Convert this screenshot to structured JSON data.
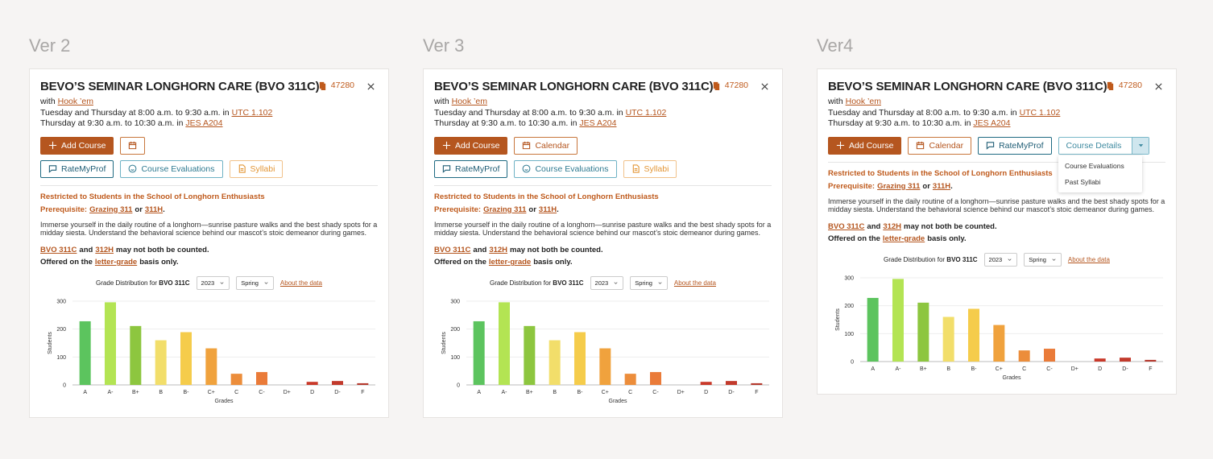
{
  "versions": [
    {
      "label": "Ver 2",
      "title": "BEVO’S SEMINAR LONGHORN CARE (BVO 311C)",
      "unique": "47280",
      "instructor_prefix": "with",
      "instructor": "Hook ’em",
      "schedule": [
        {
          "text": "Tuesday and Thursday at 8:00 a.m. to 9:30 a.m. in",
          "room": "UTC 1.102"
        },
        {
          "text": "Thursday at 9:30 a.m. to 10:30 a.m. in",
          "room": "JES A204"
        }
      ],
      "button_rows": [
        [
          {
            "label": "Add Course",
            "style": "primary",
            "icon": "plus"
          },
          {
            "style": "orange",
            "icon": "calendar"
          }
        ],
        [
          {
            "label": "RateMyProf",
            "style": "teal",
            "icon": "chat"
          },
          {
            "label": "Course Evaluations",
            "style": "light-teal",
            "icon": "smile"
          },
          {
            "label": "Syllabi",
            "style": "light-orange",
            "icon": "doc"
          }
        ]
      ],
      "restriction": "Restricted to Students in the School of Longhorn Enthusiasts",
      "prerequisite": [
        {
          "text": "Prerequisite:"
        },
        {
          "text": "Grazing 311",
          "link": true
        },
        {
          "text": "or"
        },
        {
          "text": "311H",
          "link": true
        },
        {
          "text": "."
        }
      ],
      "description": "Immerse yourself in the daily routine of a longhorn—sunrise pasture walks and the best shady spots for a midday siesta. Understand the behavioral science behind our mascot’s stoic demeanor during games.",
      "notes": [
        [
          {
            "text": "BVO 311C",
            "link": true
          },
          {
            "text": "and"
          },
          {
            "text": "312H",
            "link": true
          },
          {
            "text": "may not both be counted."
          }
        ],
        [
          {
            "text": "Offered on the"
          },
          {
            "text": "letter-grade",
            "link": true
          },
          {
            "text": "basis only."
          }
        ]
      ]
    },
    {
      "label": "Ver 3",
      "title": "BEVO’S SEMINAR LONGHORN CARE (BVO 311C)",
      "unique": "47280",
      "instructor_prefix": "with",
      "instructor": "Hook ’em",
      "schedule": [
        {
          "text": "Tuesday and Thursday at 8:00 a.m. to 9:30 a.m. in",
          "room": "UTC 1.102"
        },
        {
          "text": "Thursday at 9:30 a.m. to 10:30 a.m. in",
          "room": "JES A204"
        }
      ],
      "button_rows": [
        [
          {
            "label": "Add Course",
            "style": "primary",
            "icon": "plus"
          },
          {
            "label": "Calendar",
            "style": "orange",
            "icon": "calendar"
          }
        ],
        [
          {
            "label": "RateMyProf",
            "style": "teal",
            "icon": "chat"
          },
          {
            "label": "Course Evaluations",
            "style": "light-teal",
            "icon": "smile"
          },
          {
            "label": "Syllabi",
            "style": "light-orange",
            "icon": "doc"
          }
        ]
      ],
      "restriction": "Restricted to Students in the School of Longhorn Enthusiasts",
      "prerequisite": [
        {
          "text": "Prerequisite:"
        },
        {
          "text": "Grazing 311",
          "link": true
        },
        {
          "text": "or"
        },
        {
          "text": "311H",
          "link": true
        },
        {
          "text": "."
        }
      ],
      "description": "Immerse yourself in the daily routine of a longhorn—sunrise pasture walks and the best shady spots for a midday siesta. Understand the behavioral science behind our mascot’s stoic demeanor during games.",
      "notes": [
        [
          {
            "text": "BVO 311C",
            "link": true
          },
          {
            "text": "and"
          },
          {
            "text": "312H",
            "link": true
          },
          {
            "text": "may not both be counted."
          }
        ],
        [
          {
            "text": "Offered on the"
          },
          {
            "text": "letter-grade",
            "link": true
          },
          {
            "text": "basis only."
          }
        ]
      ]
    },
    {
      "label": "Ver4",
      "title": "BEVO’S SEMINAR LONGHORN CARE (BVO 311C)",
      "unique": "47280",
      "instructor_prefix": "with",
      "instructor": "Hook ’em",
      "schedule": [
        {
          "text": "Tuesday and Thursday at 8:00 a.m. to 9:30 a.m. in",
          "room": "UTC 1.102"
        },
        {
          "text": "Thursday at 9:30 a.m. to 10:30 a.m. in",
          "room": "JES A204"
        }
      ],
      "button_rows": [
        [
          {
            "label": "Add Course",
            "style": "primary",
            "icon": "plus"
          },
          {
            "label": "Calendar",
            "style": "orange",
            "icon": "calendar"
          },
          {
            "label": "RateMyProf",
            "style": "teal",
            "icon": "chat"
          },
          {
            "label": "Course Details",
            "style": "split",
            "menu": [
              "Course Evaluations",
              "Past Syllabi"
            ]
          }
        ]
      ],
      "restriction": "Restricted to Students in the School of Longhorn Enthusiasts",
      "prerequisite": [
        {
          "text": "Prerequisite:"
        },
        {
          "text": "Grazing 311",
          "link": true
        },
        {
          "text": "or"
        },
        {
          "text": "311H",
          "link": true
        },
        {
          "text": "."
        }
      ],
      "description": "Immerse yourself in the daily routine of a longhorn—sunrise pasture walks and the best shady spots for a midday siesta. Understand the behavioral science behind our mascot’s stoic demeanor during games.",
      "notes": [
        [
          {
            "text": "BVO 311C",
            "link": true
          },
          {
            "text": "and"
          },
          {
            "text": "312H",
            "link": true
          },
          {
            "text": "may not both be counted."
          }
        ],
        [
          {
            "text": "Offered on the"
          },
          {
            "text": "letter-grade",
            "link": true
          },
          {
            "text": "basis only."
          }
        ]
      ]
    }
  ],
  "chart_data": [
    {
      "type": "bar",
      "title": "Grade Distribution for",
      "course": "BVO 311C",
      "year": "2023",
      "semester": "Spring",
      "link": "About the data",
      "ylabel": "Students",
      "xlabel": "Grades",
      "categories": [
        "A",
        "A-",
        "B+",
        "B",
        "B-",
        "C+",
        "C",
        "C-",
        "D+",
        "D",
        "D-",
        "F"
      ],
      "values": [
        228,
        296,
        211,
        160,
        189,
        131,
        40,
        46,
        0,
        11,
        14,
        6
      ],
      "colors": [
        "#5cc45e",
        "#b3e453",
        "#8dc63f",
        "#f2de6a",
        "#f5cc4b",
        "#f0a23d",
        "#ec8d3b",
        "#ea7b39",
        "#d9532f",
        "#c9392a",
        "#c23a2c",
        "#b5392d"
      ],
      "ylim": [
        0,
        300
      ],
      "yticks": [
        0,
        100,
        200,
        300
      ],
      "grid": true
    },
    {
      "type": "bar",
      "title": "Grade Distribution for",
      "course": "BVO 311C",
      "year": "2023",
      "semester": "Spring",
      "link": "About the data",
      "ylabel": "Students",
      "xlabel": "Grades",
      "categories": [
        "A",
        "A-",
        "B+",
        "B",
        "B-",
        "C+",
        "C",
        "C-",
        "D+",
        "D",
        "D-",
        "F"
      ],
      "values": [
        228,
        296,
        211,
        160,
        189,
        131,
        40,
        46,
        0,
        11,
        14,
        6
      ],
      "colors": [
        "#5cc45e",
        "#b3e453",
        "#8dc63f",
        "#f2de6a",
        "#f5cc4b",
        "#f0a23d",
        "#ec8d3b",
        "#ea7b39",
        "#d9532f",
        "#c9392a",
        "#c23a2c",
        "#b5392d"
      ],
      "ylim": [
        0,
        300
      ],
      "yticks": [
        0,
        100,
        200,
        300
      ],
      "grid": true
    },
    {
      "type": "bar",
      "title": "Grade Distribution for",
      "course": "BVO 311C",
      "year": "2023",
      "semester": "Spring",
      "link": "About the data",
      "ylabel": "Students",
      "xlabel": "Grades",
      "categories": [
        "A",
        "A-",
        "B+",
        "B",
        "B-",
        "C+",
        "C",
        "C-",
        "D+",
        "D",
        "D-",
        "F"
      ],
      "values": [
        228,
        296,
        211,
        160,
        189,
        131,
        40,
        46,
        0,
        11,
        14,
        6
      ],
      "colors": [
        "#5cc45e",
        "#b3e453",
        "#8dc63f",
        "#f2de6a",
        "#f5cc4b",
        "#f0a23d",
        "#ec8d3b",
        "#ea7b39",
        "#d9532f",
        "#c9392a",
        "#c23a2c",
        "#b5392d"
      ],
      "ylim": [
        0,
        300
      ],
      "yticks": [
        0,
        100,
        200,
        300
      ],
      "grid": true
    }
  ]
}
